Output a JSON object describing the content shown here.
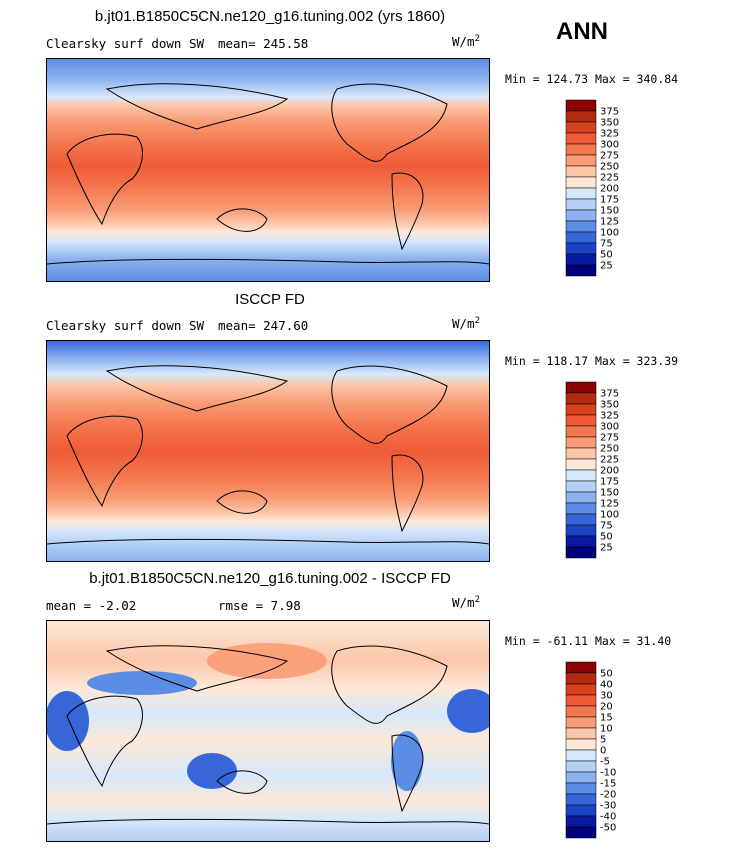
{
  "summary_label": "ANN",
  "units": "W/m",
  "units_superscript": "2",
  "panels": [
    {
      "title": "b.jt01.B1850C5CN.ne120_g16.tuning.002 (yrs 1860)",
      "left_label": "Clearsky surf down SW",
      "center_label": "mean= 245.58",
      "minmax": "Min = 124.73 Max = 340.84",
      "colorbar_levels": [
        "375",
        "350",
        "325",
        "300",
        "275",
        "250",
        "225",
        "200",
        "175",
        "150",
        "125",
        "100",
        "75",
        "50",
        "25"
      ],
      "colorbar_colors": [
        "#8b0000",
        "#b22a10",
        "#d9401e",
        "#ef5a38",
        "#f4784f",
        "#f99c76",
        "#fcc6a8",
        "#fde8d8",
        "#d6e8fb",
        "#b3d0f5",
        "#8cb2ef",
        "#5c8de4",
        "#3766d9",
        "#1a42c4",
        "#0a1a9e",
        "#00007a"
      ]
    },
    {
      "title": "ISCCP FD",
      "left_label": "Clearsky surf down SW",
      "center_label": "mean= 247.60",
      "minmax": "Min = 118.17 Max = 323.39",
      "colorbar_levels": [
        "375",
        "350",
        "325",
        "300",
        "275",
        "250",
        "225",
        "200",
        "175",
        "150",
        "125",
        "100",
        "75",
        "50",
        "25"
      ],
      "colorbar_colors": [
        "#8b0000",
        "#b22a10",
        "#d9401e",
        "#ef5a38",
        "#f4784f",
        "#f99c76",
        "#fcc6a8",
        "#fde8d8",
        "#d6e8fb",
        "#b3d0f5",
        "#8cb2ef",
        "#5c8de4",
        "#3766d9",
        "#1a42c4",
        "#0a1a9e",
        "#00007a"
      ]
    },
    {
      "title": "b.jt01.B1850C5CN.ne120_g16.tuning.002 - ISCCP FD",
      "left_label": "mean =  -2.02",
      "center_label": "rmse =  7.98",
      "minmax": "Min = -61.11 Max =  31.40",
      "colorbar_levels": [
        "50",
        "40",
        "30",
        "20",
        "15",
        "10",
        "5",
        "0",
        "-5",
        "-10",
        "-15",
        "-20",
        "-30",
        "-40",
        "-50"
      ],
      "colorbar_colors": [
        "#8b0000",
        "#b22a10",
        "#d9401e",
        "#ef5a38",
        "#f4784f",
        "#f99c76",
        "#fcc6a8",
        "#fde8d8",
        "#d6e8fb",
        "#b3d0f5",
        "#8cb2ef",
        "#5c8de4",
        "#3766d9",
        "#1a42c4",
        "#0a1a9e",
        "#00007a"
      ]
    }
  ],
  "chart_data": [
    {
      "type": "heatmap",
      "title": "b.jt01.B1850C5CN.ne120_g16.tuning.002 (yrs 1860)",
      "variable": "Clearsky surf down SW",
      "units": "W/m2",
      "mean": 245.58,
      "min": 124.73,
      "max": 340.84,
      "levels": [
        25,
        50,
        75,
        100,
        125,
        150,
        175,
        200,
        225,
        250,
        275,
        300,
        325,
        350,
        375
      ]
    },
    {
      "type": "heatmap",
      "title": "ISCCP FD",
      "variable": "Clearsky surf down SW",
      "units": "W/m2",
      "mean": 247.6,
      "min": 118.17,
      "max": 323.39,
      "levels": [
        25,
        50,
        75,
        100,
        125,
        150,
        175,
        200,
        225,
        250,
        275,
        300,
        325,
        350,
        375
      ]
    },
    {
      "type": "heatmap",
      "title": "b.jt01.B1850C5CN.ne120_g16.tuning.002 - ISCCP FD",
      "units": "W/m2",
      "mean": -2.02,
      "rmse": 7.98,
      "min": -61.11,
      "max": 31.4,
      "levels": [
        -50,
        -40,
        -30,
        -20,
        -15,
        -10,
        -5,
        0,
        5,
        10,
        15,
        20,
        30,
        40,
        50
      ]
    }
  ]
}
